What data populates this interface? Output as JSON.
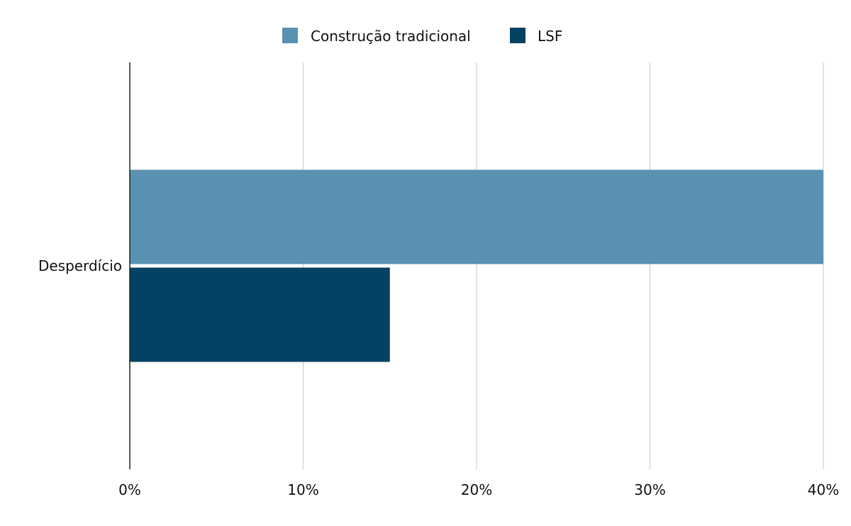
{
  "chart_data": {
    "type": "bar",
    "orientation": "horizontal",
    "title": "",
    "categories": [
      "Desperdício"
    ],
    "series": [
      {
        "name": "Construção tradicional",
        "values": [
          40
        ],
        "color": "#5b91b0"
      },
      {
        "name": "LSF",
        "values": [
          15
        ],
        "color": "#044263"
      }
    ],
    "xlim": [
      0,
      40
    ],
    "xticks": [
      0,
      10,
      20,
      30,
      40
    ],
    "xtick_labels": [
      "0%",
      "10%",
      "20%",
      "30%",
      "40%"
    ],
    "xlabel": "",
    "ylabel": "",
    "grid": true,
    "legend_position": "top-center"
  }
}
